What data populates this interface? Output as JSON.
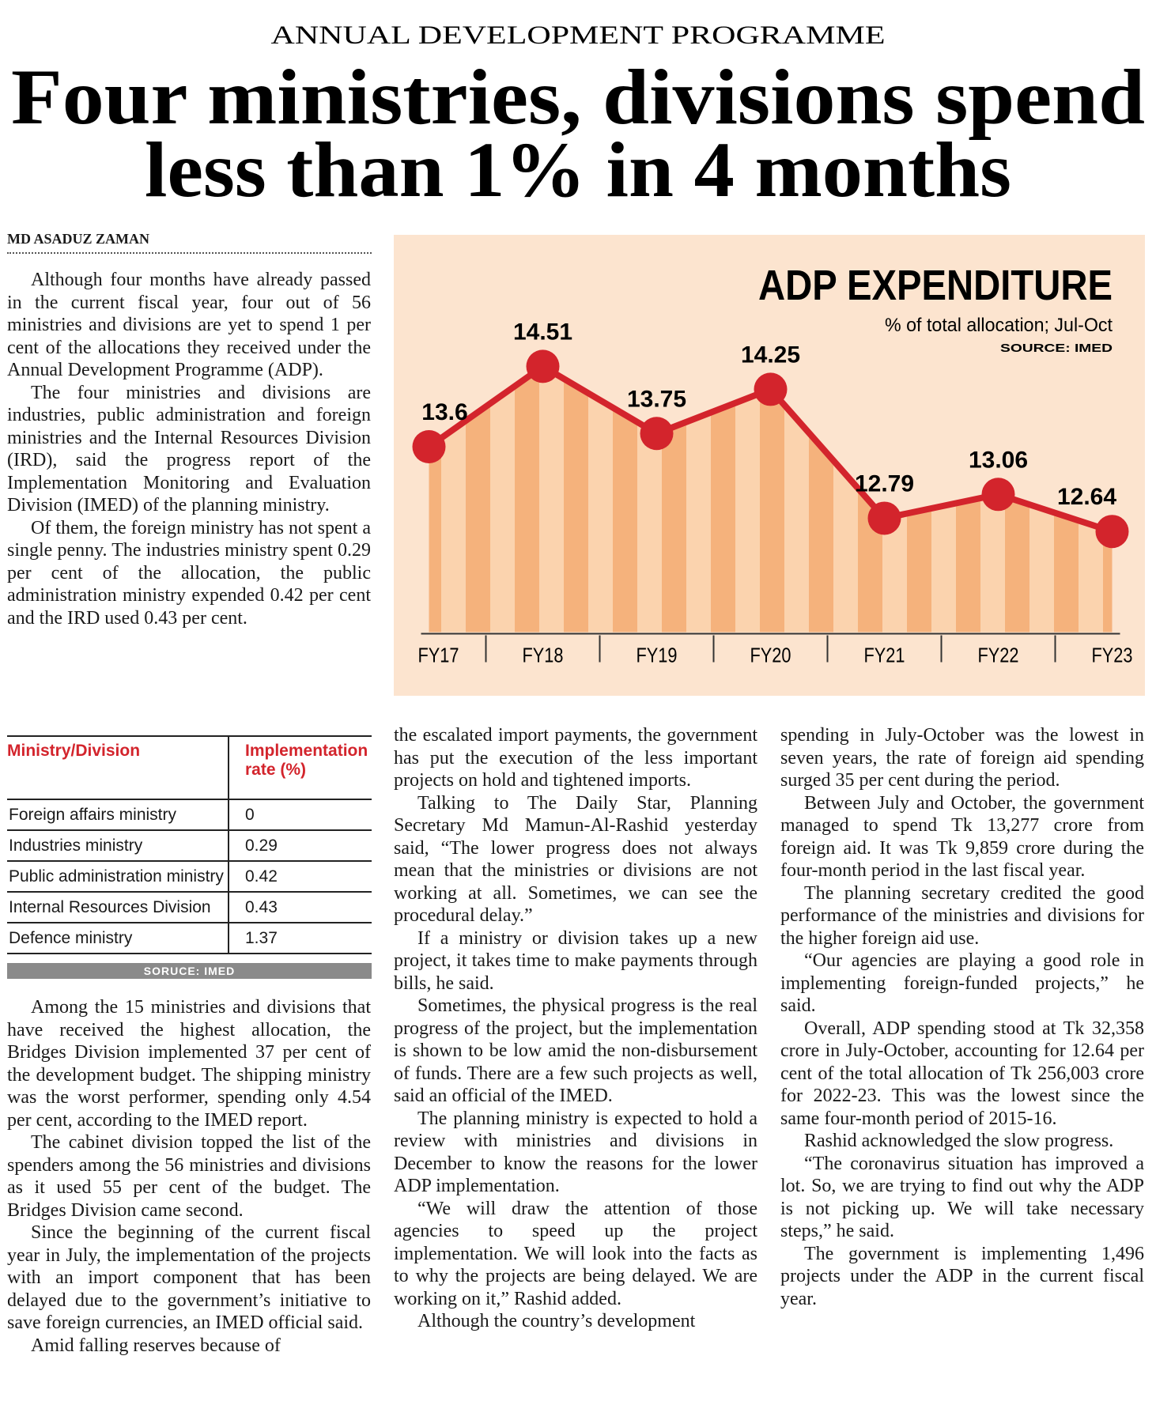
{
  "header": {
    "kicker": "ANNUAL DEVELOPMENT PROGRAMME",
    "headline": [
      "Four ministries, divisions spend",
      "less than 1% in 4 months"
    ],
    "byline": "MD ASADUZ ZAMAN"
  },
  "chart_data": {
    "type": "line",
    "title": "ADP EXPENDITURE",
    "subtitle": "% of total allocation; Jul-Oct",
    "source": "SOURCE: IMED",
    "categories": [
      "FY17",
      "FY18",
      "FY19",
      "FY20",
      "FY21",
      "FY22",
      "FY23"
    ],
    "values": [
      13.6,
      14.51,
      13.75,
      14.25,
      12.79,
      13.06,
      12.64
    ],
    "ylim": [
      11.5,
      16.0
    ],
    "color": "#d3242c",
    "area_colors": [
      "#f5b27c",
      "#fbd3ae"
    ]
  },
  "table": {
    "header": [
      "Ministry/Division",
      "Implementation rate (%)"
    ],
    "rows": [
      [
        "Foreign affairs ministry",
        "0"
      ],
      [
        "Industries ministry",
        "0.29"
      ],
      [
        "Public administration ministry",
        "0.42"
      ],
      [
        "Internal Resources Division",
        "0.43"
      ],
      [
        "Defence ministry",
        "1.37"
      ]
    ],
    "source": "SORUCE: IMED"
  },
  "article": {
    "left_top": [
      "Although four months have already passed in the current fiscal year, four out of 56 ministries and divisions are yet to spend 1 per cent of the allocations they received under the Annual Development Programme (ADP).",
      "The four ministries and divisions are industries, public administration and foreign ministries and the Internal Resources Division (IRD), said the progress report of the Implementation Monitoring and Evaluation Division (IMED) of the planning ministry.",
      "Of them, the foreign ministry has not spent a single penny. The industries ministry spent 0.29 per cent of the allocation, the public administration ministry expended 0.42 per cent and the IRD used 0.43 per cent."
    ],
    "left_bottom": [
      "Among the 15 ministries and divisions that have received the highest allocation, the Bridges Division implemented 37 per cent of the development budget. The shipping ministry was the worst performer, spending only 4.54 per cent, according to the IMED report.",
      "The cabinet division topped the list of the spenders among the 56 ministries and divisions as it used 55 per cent of the budget. The Bridges Division came second.",
      "Since the beginning of the current fiscal year in July, the implementation of the projects with an import component that has been delayed due to the government’s initiative to save foreign currencies, an IMED official said.",
      "Amid falling reserves because of"
    ],
    "middle": [
      "the escalated import payments, the government has put the execution of the less important projects on hold and tightened imports.",
      "Talking to The Daily Star, Planning Secretary Md Mamun-Al-Rashid yesterday said, “The lower progress does not always mean that the ministries or divisions are not working at all. Sometimes, we can see the procedural delay.”",
      "If a ministry or division takes up a new project, it takes time to make payments through bills, he said.",
      "Sometimes, the physical progress is the real progress of the project, but the implementation is shown to be low amid the non-disbursement of funds. There are a few such projects as well, said an official of the IMED.",
      "The planning ministry is expected to hold a review with ministries and divisions in December to know the reasons for the lower ADP implementation.",
      "“We will draw the attention of those agencies to speed up the project implementation. We will look into the facts as to why the projects are being delayed. We are working on it,” Rashid added.",
      "Although the country’s development"
    ],
    "right": [
      "spending in July-October was the lowest in seven years, the rate of foreign aid spending surged 35 per cent during the period.",
      "Between July and October, the government managed to spend Tk 13,277 crore from foreign aid. It was Tk 9,859 crore during the four-month period in the last fiscal year.",
      "The planning secretary credited the good performance of the ministries and divisions for the higher foreign aid use.",
      "“Our agencies are playing a good role in implementing foreign-funded projects,” he said.",
      "Overall, ADP spending stood at Tk 32,358 crore in July-October, accounting for 12.64 per cent of the total allocation of Tk 256,003 crore for 2022-23. This was the lowest since the same four-month period of 2015-16.",
      "Rashid acknowledged the slow progress.",
      "“The coronavirus situation has improved a lot. So, we are trying to find out why the ADP is not picking up. We will take necessary steps,” he said.",
      "The government is implementing 1,496 projects under the ADP in the current fiscal year."
    ]
  }
}
